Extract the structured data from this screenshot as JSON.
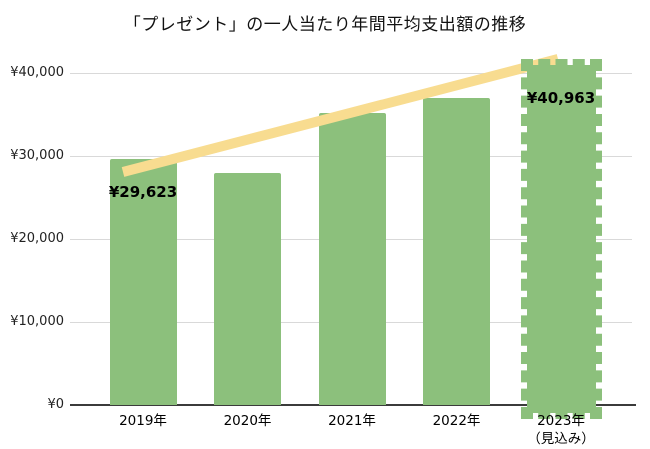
{
  "chart_data": {
    "type": "bar",
    "title": "「プレゼント」の一人当たり年間平均支出額の推移",
    "categories": [
      {
        "label": "2019年"
      },
      {
        "label": "2020年"
      },
      {
        "label": "2021年"
      },
      {
        "label": "2022年"
      },
      {
        "label": "2023年",
        "sublabel": "（見込み）"
      }
    ],
    "values": [
      29623,
      28000,
      35200,
      37000,
      40963
    ],
    "forecast_index": 4,
    "data_labels": {
      "0": "¥29,623",
      "4": "¥40,963"
    },
    "y_ticks": [
      {
        "value": 0,
        "label": "¥0"
      },
      {
        "value": 10000,
        "label": "¥10,000"
      },
      {
        "value": 20000,
        "label": "¥20,000"
      },
      {
        "value": 30000,
        "label": "¥30,000"
      },
      {
        "value": 40000,
        "label": "¥40,000"
      }
    ],
    "ylim": [
      0,
      40000
    ],
    "grid": true,
    "legend": false,
    "annotations": [
      {
        "type": "trend-line",
        "direction": "up",
        "from_category": "2019年",
        "to_category": "2023年"
      }
    ],
    "colors": {
      "bar": "#8CC07C",
      "trend_line": "#F8DC90",
      "gridline": "#D9D9D9",
      "axis": "#3B3B3B",
      "text": "#000000"
    }
  }
}
